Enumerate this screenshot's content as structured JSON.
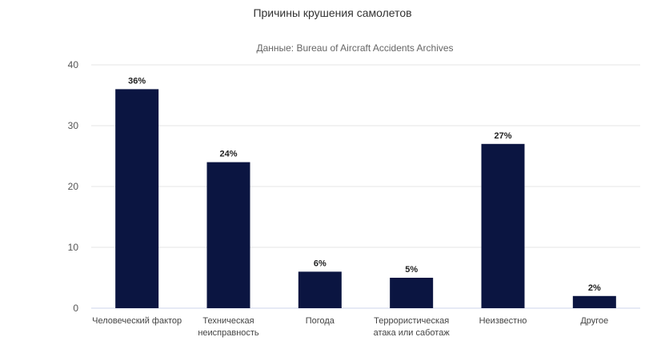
{
  "chart_data": {
    "type": "bar",
    "title": "Причины крушения самолетов",
    "subtitle": "Данные: Bureau of Aircraft Accidents Archives",
    "categories": [
      [
        "Человеческий фактор"
      ],
      [
        "Техническая",
        "неисправность"
      ],
      [
        "Погода"
      ],
      [
        "Террористическая",
        "атака или саботаж"
      ],
      [
        "Неизвестно"
      ],
      [
        "Другое"
      ]
    ],
    "values": [
      36,
      24,
      6,
      5,
      27,
      2
    ],
    "data_labels": [
      "36%",
      "24%",
      "6%",
      "5%",
      "27%",
      "2%"
    ],
    "ylim": [
      0,
      40
    ],
    "yticks": [
      0,
      10,
      20,
      30,
      40
    ],
    "grid": true,
    "legend": "none",
    "colors": {
      "bar": "#0b1541",
      "grid": "#e6e6e6",
      "axis": "#ccd6eb"
    }
  }
}
